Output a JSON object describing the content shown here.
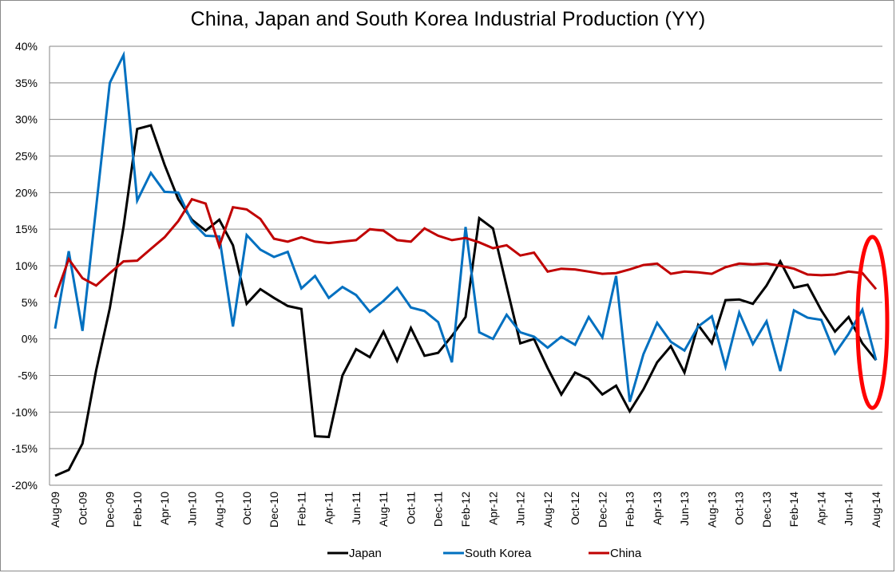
{
  "chart_data": {
    "type": "line",
    "title": "China, Japan and South Korea Industrial Production (YY)",
    "xlabel": "",
    "ylabel": "",
    "ylim": [
      -20,
      40
    ],
    "y_ticks": [
      -20,
      -15,
      -10,
      -5,
      0,
      5,
      10,
      15,
      20,
      25,
      30,
      35,
      40
    ],
    "y_tick_format": "percent",
    "grid": true,
    "legend_position": "bottom",
    "x": [
      "Aug-09",
      "Sep-09",
      "Oct-09",
      "Nov-09",
      "Dec-09",
      "Jan-10",
      "Feb-10",
      "Mar-10",
      "Apr-10",
      "May-10",
      "Jun-10",
      "Jul-10",
      "Aug-10",
      "Sep-10",
      "Oct-10",
      "Nov-10",
      "Dec-10",
      "Jan-11",
      "Feb-11",
      "Mar-11",
      "Apr-11",
      "May-11",
      "Jun-11",
      "Jul-11",
      "Aug-11",
      "Sep-11",
      "Oct-11",
      "Nov-11",
      "Dec-11",
      "Jan-12",
      "Feb-12",
      "Mar-12",
      "Apr-12",
      "May-12",
      "Jun-12",
      "Jul-12",
      "Aug-12",
      "Sep-12",
      "Oct-12",
      "Nov-12",
      "Dec-12",
      "Jan-13",
      "Feb-13",
      "Mar-13",
      "Apr-13",
      "May-13",
      "Jun-13",
      "Jul-13",
      "Aug-13",
      "Sep-13",
      "Oct-13",
      "Nov-13",
      "Dec-13",
      "Jan-14",
      "Feb-14",
      "Mar-14",
      "Apr-14",
      "May-14",
      "Jun-14",
      "Jul-14",
      "Aug-14"
    ],
    "x_tick_labels": [
      "Aug-09",
      "Oct-09",
      "Dec-09",
      "Feb-10",
      "Apr-10",
      "Jun-10",
      "Aug-10",
      "Oct-10",
      "Dec-10",
      "Feb-11",
      "Apr-11",
      "Jun-11",
      "Aug-11",
      "Oct-11",
      "Dec-11",
      "Feb-12",
      "Apr-12",
      "Jun-12",
      "Aug-12",
      "Oct-12",
      "Dec-12",
      "Feb-13",
      "Apr-13",
      "Jun-13",
      "Aug-13",
      "Oct-13",
      "Dec-13",
      "Feb-14",
      "Apr-14",
      "Jun-14",
      "Aug-14"
    ],
    "series": [
      {
        "name": "Japan",
        "color": "#000000",
        "values": [
          -18.7,
          -17.9,
          -14.3,
          -4.3,
          4.2,
          15.3,
          28.7,
          29.2,
          23.8,
          19.1,
          16.3,
          14.8,
          16.3,
          12.8,
          4.8,
          6.8,
          5.6,
          4.5,
          4.1,
          -13.3,
          -13.4,
          -5.0,
          -1.4,
          -2.5,
          1.0,
          -3.0,
          1.5,
          -2.3,
          -1.9,
          0.4,
          3.0,
          16.5,
          15.1,
          7.2,
          -0.6,
          0.0,
          -4.0,
          -7.6,
          -4.6,
          -5.5,
          -7.6,
          -6.4,
          -9.9,
          -6.9,
          -3.2,
          -1.0,
          -4.6,
          1.9,
          -0.6,
          5.3,
          5.4,
          4.8,
          7.3,
          10.6,
          7.0,
          7.4,
          3.9,
          1.0,
          3.0,
          -0.6,
          -2.9
        ]
      },
      {
        "name": "South Korea",
        "color": "#0070C0",
        "values": [
          1.4,
          12.0,
          1.1,
          18.0,
          35.0,
          38.8,
          18.9,
          22.7,
          20.1,
          20.0,
          16.0,
          14.1,
          14.0,
          1.7,
          14.2,
          12.2,
          11.2,
          11.9,
          6.9,
          8.6,
          5.6,
          7.1,
          6.0,
          3.7,
          5.2,
          7.0,
          4.3,
          3.8,
          2.3,
          -3.2,
          15.3,
          0.9,
          0.0,
          3.3,
          0.9,
          0.3,
          -1.2,
          0.3,
          -0.8,
          3.0,
          0.2,
          8.6,
          -8.6,
          -2.1,
          2.2,
          -0.4,
          -1.6,
          1.7,
          3.1,
          -3.8,
          3.6,
          -0.7,
          2.4,
          -4.4,
          3.9,
          2.9,
          2.6,
          -2.0,
          0.7,
          4.0,
          -2.9
        ]
      },
      {
        "name": "China",
        "color": "#C00000",
        "values": [
          5.7,
          10.9,
          8.3,
          7.3,
          9.0,
          10.6,
          10.7,
          12.3,
          13.9,
          16.1,
          19.1,
          18.5,
          12.7,
          18.0,
          17.7,
          16.4,
          13.7,
          13.3,
          13.9,
          13.3,
          13.1,
          13.3,
          13.5,
          15.0,
          14.8,
          13.5,
          13.3,
          15.1,
          14.1,
          13.5,
          13.8,
          13.2,
          12.4,
          12.8,
          11.4,
          11.8,
          9.2,
          9.6,
          9.5,
          9.2,
          8.9,
          9.0,
          9.5,
          10.1,
          10.3,
          8.9,
          9.2,
          9.1,
          8.9,
          9.8,
          10.3,
          10.2,
          10.3,
          10.0,
          9.6,
          8.8,
          8.7,
          8.8,
          9.2,
          9.0,
          6.8
        ]
      }
    ],
    "annotations": [
      {
        "type": "ellipse",
        "color": "#FF0000",
        "description": "red ellipse highlighting the latest readings (Jul-14 to Aug-14)",
        "x_range": [
          "Jul-14",
          "Aug-14"
        ],
        "y_range": [
          -9,
          13.5
        ]
      }
    ]
  }
}
